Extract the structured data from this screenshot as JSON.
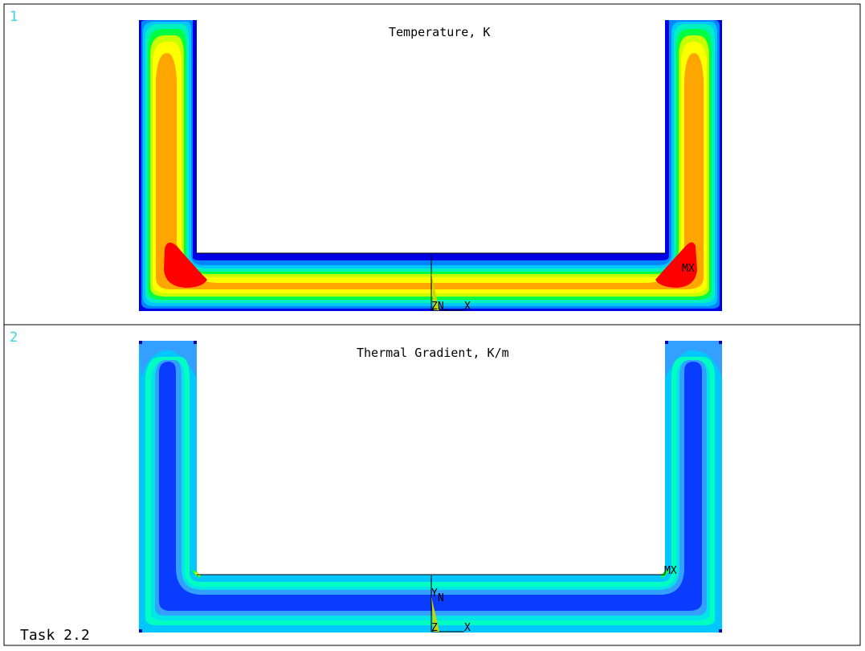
{
  "panels": [
    {
      "number": "1",
      "title": "Temperature, K",
      "max_label": "MX",
      "min_label": "N",
      "axis_x": "X",
      "axis_z": "Z",
      "bands": [
        "#0000e6",
        "#0085ff",
        "#00c8ff",
        "#00f0c0",
        "#00ff40",
        "#c8ff00",
        "#ffff00",
        "#ffa500",
        "#ff0000"
      ]
    },
    {
      "number": "2",
      "title": "Thermal Gradient, K/m",
      "max_label": "MX",
      "min_label": "N",
      "axis_x": "X",
      "axis_y": "Y",
      "axis_z": "Z",
      "bands": [
        "#00c8ff",
        "#00e6e6",
        "#00ffc0",
        "#33a0ff",
        "#0a3cff"
      ]
    }
  ],
  "footer": {
    "task": "Task 2.2"
  }
}
